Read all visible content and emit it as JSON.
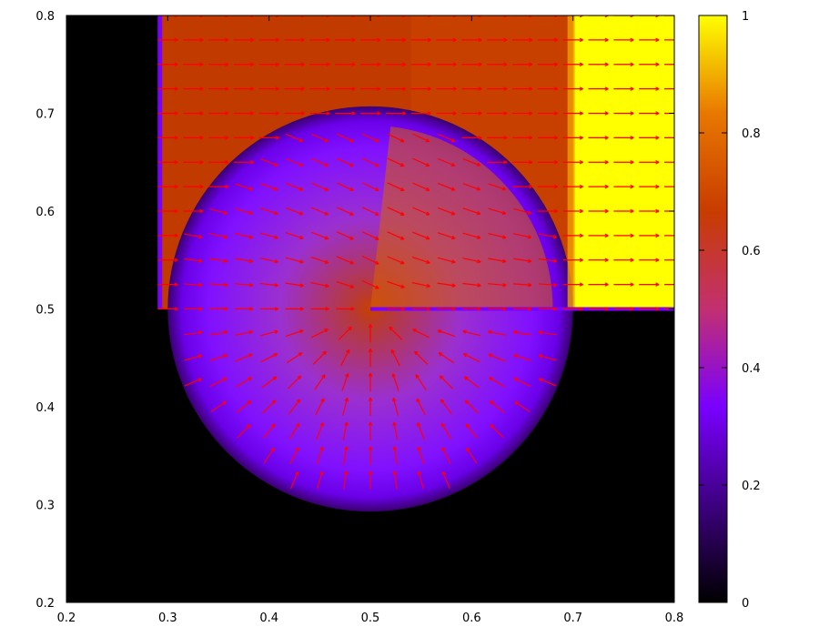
{
  "chart_data": {
    "type": "heatmap",
    "title": "",
    "xlabel": "",
    "ylabel": "",
    "xlim": [
      0.2,
      0.8
    ],
    "ylim": [
      0.2,
      0.8
    ],
    "x_ticks": [
      "0.2",
      "0.3",
      "0.4",
      "0.5",
      "0.6",
      "0.7",
      "0.8"
    ],
    "y_ticks": [
      "0.2",
      "0.3",
      "0.4",
      "0.5",
      "0.6",
      "0.7",
      "0.8"
    ],
    "colorbar": {
      "range": [
        0,
        1
      ],
      "ticks": [
        "0",
        "0.2",
        "0.4",
        "0.6",
        "0.8",
        "1"
      ],
      "colors": [
        "#000000",
        "#3d0080",
        "#7a00ff",
        "#c23070",
        "#c83c00",
        "#e87800",
        "#ffff00"
      ]
    },
    "regions": [
      {
        "name": "left-wall",
        "x": [
          0.2,
          0.29
        ],
        "y": [
          0.2,
          0.8
        ],
        "value": 0.0
      },
      {
        "name": "bottom-right-corner",
        "x": [
          0.7,
          0.8
        ],
        "y": [
          0.2,
          0.5
        ],
        "value": 0.0
      },
      {
        "name": "upper-channel",
        "x": [
          0.29,
          0.7
        ],
        "y": [
          0.5,
          0.8
        ],
        "value": 0.6
      },
      {
        "name": "inflow",
        "x": [
          0.7,
          0.8
        ],
        "y": [
          0.5,
          0.8
        ],
        "value": 1.0
      },
      {
        "name": "vortex-disc",
        "center": [
          0.5,
          0.5
        ],
        "radius": 0.2,
        "value_range": [
          0.25,
          0.75
        ]
      }
    ],
    "vector_field": {
      "color": "#ff0000",
      "uniform_flow": {
        "x": [
          0.3,
          0.8
        ],
        "y": [
          0.52,
          0.8
        ],
        "direction": "+x"
      },
      "vortex": {
        "center": [
          0.5,
          0.5
        ],
        "radius": 0.2,
        "lower_half": "radial-inward",
        "upper_half": "inward-right"
      }
    }
  }
}
